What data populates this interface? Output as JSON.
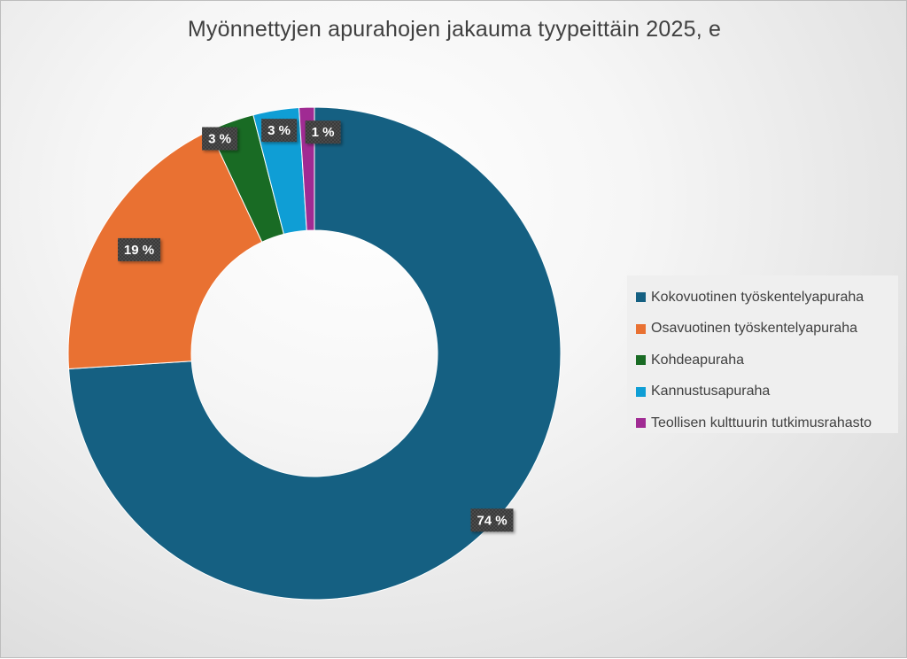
{
  "chart_data": {
    "type": "pie",
    "donut": true,
    "title": "Myönnettyjen apurahojen jakauma tyypeittäin 2025, e",
    "legend_position": "right",
    "categories": [
      "Kokovuotinen työskentelyapuraha",
      "Osavuotinen työskentelyapuraha",
      "Kohdeapuraha",
      "Kannustusapuraha",
      "Teollisen kulttuurin tutkimusrahasto"
    ],
    "values": [
      74,
      19,
      3,
      3,
      1
    ],
    "value_unit": "%",
    "data_labels": [
      "74 %",
      "19 %",
      "3 %",
      "3 %",
      "1 %"
    ],
    "colors": [
      "#156082",
      "#E97132",
      "#196B24",
      "#0F9ED5",
      "#A02B93"
    ]
  }
}
